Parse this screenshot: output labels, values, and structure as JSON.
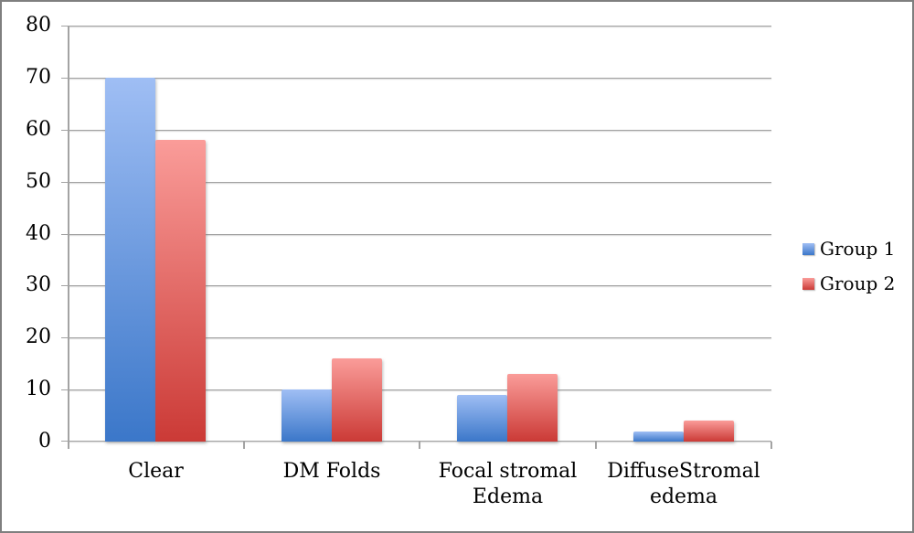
{
  "chart_data": {
    "type": "bar",
    "title": "",
    "categories": [
      "Clear",
      "DM Folds",
      "Focal stromal Edema",
      "DiffuseStromal edema"
    ],
    "series": [
      {
        "name": "Group 1",
        "values": [
          70,
          10,
          9,
          2
        ],
        "color_top": "#9fbef4",
        "color_bottom": "#3b77c9"
      },
      {
        "name": "Group 2",
        "values": [
          58,
          16,
          13,
          4
        ],
        "color_top": "#fa9c99",
        "color_bottom": "#cb3a36"
      }
    ],
    "xlabel": "",
    "ylabel": "",
    "ylim": [
      0,
      80
    ],
    "ytick_step": 10,
    "ytick_labels": [
      "0",
      "10",
      "20",
      "30",
      "40",
      "50",
      "60",
      "70",
      "80"
    ],
    "grid": true,
    "legend_position": "right"
  },
  "colors": {
    "gridline": "#a3a3a3",
    "axis": "#a3a3a3",
    "frame_border": "#7f7f7f",
    "text": "#000000",
    "background": "#ffffff"
  }
}
